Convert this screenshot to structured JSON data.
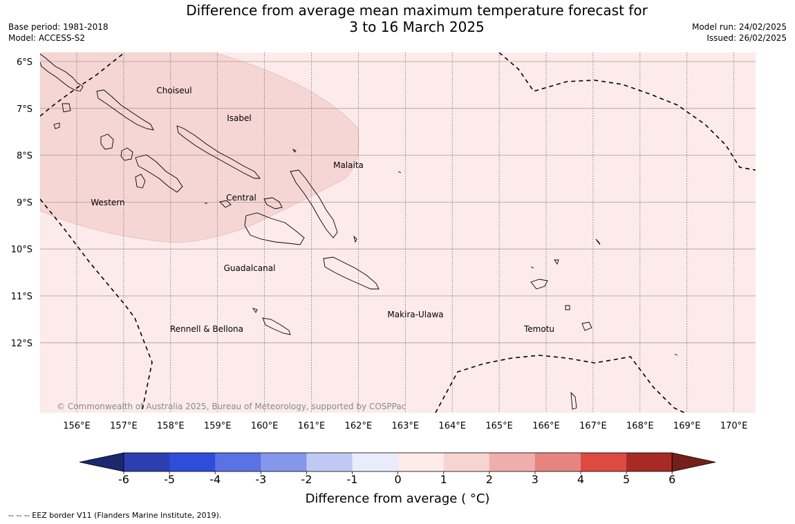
{
  "title_line1": "Difference from average mean maximum temperature forecast for",
  "title_line2": "3 to 16 March 2025",
  "meta_left": {
    "base_period": "Base period: 1981-2018",
    "model": "Model: ACCESS-S2"
  },
  "meta_right": {
    "model_run": "Model run: 24/02/2025",
    "issued": "Issued: 26/02/2025"
  },
  "copyright": "© Commonwealth of Australia 2025, Bureau of Meteorology, supported by COSPPac",
  "lat_labels": [
    "6°S",
    "7°S",
    "8°S",
    "9°S",
    "10°S",
    "11°S",
    "12°S"
  ],
  "lon_labels": [
    "156°E",
    "157°E",
    "158°E",
    "159°E",
    "160°E",
    "161°E",
    "162°E",
    "163°E",
    "164°E",
    "165°E",
    "166°E",
    "167°E",
    "168°E",
    "169°E",
    "170°E"
  ],
  "regions": [
    "Choiseul",
    "Isabel",
    "Malaita",
    "Western",
    "Central",
    "Guadalcanal",
    "Makira-Ulawa",
    "Rennell & Bellona",
    "Temotu"
  ],
  "colorbar": {
    "title": "Difference from average ( °C)",
    "ticks": [
      "-6",
      "-5",
      "-4",
      "-3",
      "-2",
      "-1",
      "0",
      "1",
      "2",
      "3",
      "4",
      "5",
      "6"
    ],
    "colors": [
      "#22348e",
      "#2c3fb0",
      "#2f4ddb",
      "#5a72e3",
      "#8597ec",
      "#c0c8f4",
      "#e8ecfb",
      "#fdebea",
      "#f6d4d2",
      "#eeaeab",
      "#e6857f",
      "#dc4a42",
      "#a82a24",
      "#7a1f1a"
    ],
    "low_extend_color": "#1a2870",
    "high_extend_color": "#74201b"
  },
  "map_colors": {
    "background": "#fcebea",
    "warm_zone": "#f5d6d4"
  },
  "footer": "--  --  -- EEZ border V11 (Flanders Marine Institute, 2019)."
}
